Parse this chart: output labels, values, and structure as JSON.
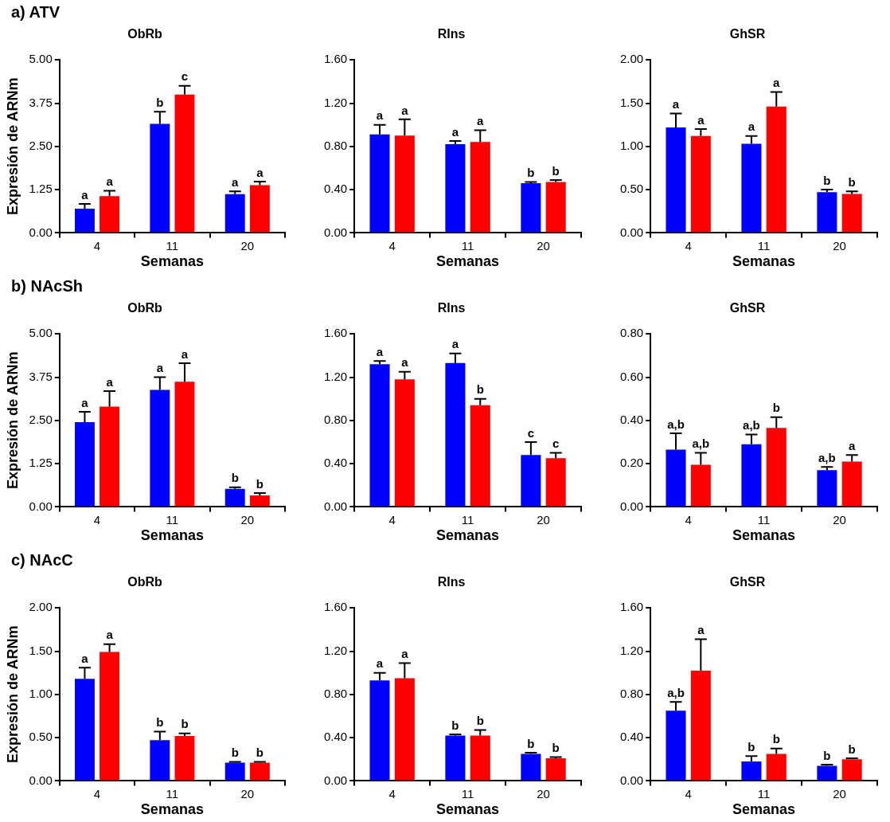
{
  "chart_data": [
    {
      "type": "bar",
      "annotations": [
        "a) ATV"
      ],
      "title": "ObRb",
      "xlabel": "Semanas",
      "ylabel": "Expresión de ARNm",
      "categories": [
        "4",
        "11",
        "20"
      ],
      "ylim": [
        0,
        5
      ],
      "yticks": [
        {
          "value": 0,
          "label": "0.00"
        },
        {
          "value": 1.25,
          "label": "1.25"
        },
        {
          "value": 2.5,
          "label": "2.50"
        },
        {
          "value": 3.75,
          "label": "3.75"
        },
        {
          "value": 5,
          "label": "5.00"
        }
      ],
      "series": [
        {
          "color": "#0000ff",
          "values": [
            0.7,
            3.15,
            1.12
          ],
          "errors": [
            [
              0.7,
              0.84
            ],
            [
              3.15,
              3.5
            ],
            [
              1.12,
              1.2
            ]
          ],
          "value_labels": [
            "a",
            "b",
            "a"
          ]
        },
        {
          "color": "#ff0000",
          "values": [
            1.06,
            4.0,
            1.38
          ],
          "errors": [
            [
              1.06,
              1.22
            ],
            [
              4.0,
              4.25
            ],
            [
              1.38,
              1.48
            ]
          ],
          "value_labels": [
            "a",
            "c",
            "a"
          ]
        }
      ]
    },
    {
      "type": "bar",
      "title": "RIns",
      "xlabel": "Semanas",
      "categories": [
        "4",
        "11",
        "20"
      ],
      "ylim": [
        0,
        1.6
      ],
      "yticks": [
        {
          "value": 0,
          "label": "0.00"
        },
        {
          "value": 0.4,
          "label": "0.40"
        },
        {
          "value": 0.8,
          "label": "0.80"
        },
        {
          "value": 1.2,
          "label": "1.20"
        },
        {
          "value": 1.6,
          "label": "1.60"
        }
      ],
      "series": [
        {
          "color": "#0000ff",
          "values": [
            0.91,
            0.82,
            0.46
          ],
          "errors": [
            [
              0.91,
              1.0
            ],
            [
              0.82,
              0.85
            ],
            [
              0.46,
              0.47
            ]
          ],
          "value_labels": [
            "a",
            "a",
            "b"
          ]
        },
        {
          "color": "#ff0000",
          "values": [
            0.9,
            0.84,
            0.47
          ],
          "errors": [
            [
              0.9,
              1.05
            ],
            [
              0.84,
              0.95
            ],
            [
              0.47,
              0.49
            ]
          ],
          "value_labels": [
            "a",
            "a",
            "b"
          ]
        }
      ]
    },
    {
      "type": "bar",
      "title": "GhSR",
      "xlabel": "Semanas",
      "categories": [
        "4",
        "11",
        "20"
      ],
      "ylim": [
        0,
        2
      ],
      "yticks": [
        {
          "value": 0,
          "label": "0.00"
        },
        {
          "value": 0.5,
          "label": "0.50"
        },
        {
          "value": 1,
          "label": "1.00"
        },
        {
          "value": 1.5,
          "label": "1.50"
        },
        {
          "value": 2,
          "label": "2.00"
        }
      ],
      "series": [
        {
          "color": "#0000ff",
          "values": [
            1.22,
            1.03,
            0.47
          ],
          "errors": [
            [
              1.22,
              1.38
            ],
            [
              1.03,
              1.12
            ],
            [
              0.47,
              0.5
            ]
          ],
          "value_labels": [
            "a",
            "a",
            "b"
          ]
        },
        {
          "color": "#ff0000",
          "values": [
            1.12,
            1.46,
            0.45
          ],
          "errors": [
            [
              1.12,
              1.2
            ],
            [
              1.46,
              1.63
            ],
            [
              0.45,
              0.48
            ]
          ],
          "value_labels": [
            "a",
            "a",
            "b"
          ]
        }
      ]
    },
    {
      "type": "bar",
      "annotations": [
        "b) NAcSh"
      ],
      "title": "ObRb",
      "xlabel": "Semanas",
      "ylabel": "Expresión de ARNm",
      "categories": [
        "4",
        "11",
        "20"
      ],
      "ylim": [
        0,
        5
      ],
      "yticks": [
        {
          "value": 0,
          "label": "0.00"
        },
        {
          "value": 1.25,
          "label": "1.25"
        },
        {
          "value": 2.5,
          "label": "2.50"
        },
        {
          "value": 3.75,
          "label": "3.75"
        },
        {
          "value": 5,
          "label": "5.00"
        }
      ],
      "series": [
        {
          "color": "#0000ff",
          "values": [
            2.45,
            3.38,
            0.52
          ],
          "errors": [
            [
              2.45,
              2.75
            ],
            [
              3.38,
              3.75
            ],
            [
              0.52,
              0.57
            ]
          ],
          "value_labels": [
            "a",
            "a",
            "b"
          ]
        },
        {
          "color": "#ff0000",
          "values": [
            2.9,
            3.62,
            0.33
          ],
          "errors": [
            [
              2.9,
              3.35
            ],
            [
              3.62,
              4.15
            ],
            [
              0.33,
              0.4
            ]
          ],
          "value_labels": [
            "a",
            "a",
            "b"
          ]
        }
      ]
    },
    {
      "type": "bar",
      "title": "RIns",
      "xlabel": "Semanas",
      "categories": [
        "4",
        "11",
        "20"
      ],
      "ylim": [
        0,
        1.6
      ],
      "yticks": [
        {
          "value": 0,
          "label": "0.00"
        },
        {
          "value": 0.4,
          "label": "0.40"
        },
        {
          "value": 0.8,
          "label": "0.80"
        },
        {
          "value": 1.2,
          "label": "1.20"
        },
        {
          "value": 1.6,
          "label": "1.60"
        }
      ],
      "series": [
        {
          "color": "#0000ff",
          "values": [
            1.32,
            1.33,
            0.48
          ],
          "errors": [
            [
              1.32,
              1.35
            ],
            [
              1.33,
              1.42
            ],
            [
              0.48,
              0.6
            ]
          ],
          "value_labels": [
            "a",
            "a",
            "c"
          ]
        },
        {
          "color": "#ff0000",
          "values": [
            1.18,
            0.94,
            0.45
          ],
          "errors": [
            [
              1.18,
              1.25
            ],
            [
              0.94,
              1.0
            ],
            [
              0.45,
              0.5
            ]
          ],
          "value_labels": [
            "a",
            "b",
            "c"
          ]
        }
      ]
    },
    {
      "type": "bar",
      "title": "GhSR",
      "xlabel": "Semanas",
      "categories": [
        "4",
        "11",
        "20"
      ],
      "ylim": [
        0,
        0.8
      ],
      "yticks": [
        {
          "value": 0,
          "label": "0.00"
        },
        {
          "value": 0.2,
          "label": "0.20"
        },
        {
          "value": 0.4,
          "label": "0.40"
        },
        {
          "value": 0.6,
          "label": "0.60"
        },
        {
          "value": 0.8,
          "label": "0.80"
        }
      ],
      "series": [
        {
          "color": "#0000ff",
          "values": [
            0.265,
            0.29,
            0.17
          ],
          "errors": [
            [
              0.265,
              0.34
            ],
            [
              0.29,
              0.335
            ],
            [
              0.17,
              0.185
            ]
          ],
          "value_labels": [
            "a,b",
            "a,b",
            "a,b"
          ]
        },
        {
          "color": "#ff0000",
          "values": [
            0.195,
            0.365,
            0.21
          ],
          "errors": [
            [
              0.195,
              0.25
            ],
            [
              0.365,
              0.415
            ],
            [
              0.21,
              0.24
            ]
          ],
          "value_labels": [
            "a,b",
            "b",
            "a"
          ]
        }
      ]
    },
    {
      "type": "bar",
      "annotations": [
        "c) NAcC"
      ],
      "title": "ObRb",
      "xlabel": "Semanas",
      "ylabel": "Expresión de ARNm",
      "categories": [
        "4",
        "11",
        "20"
      ],
      "ylim": [
        0,
        2
      ],
      "yticks": [
        {
          "value": 0,
          "label": "0.00"
        },
        {
          "value": 0.5,
          "label": "0.50"
        },
        {
          "value": 1,
          "label": "1.00"
        },
        {
          "value": 1.5,
          "label": "1.50"
        },
        {
          "value": 2,
          "label": "2.00"
        }
      ],
      "series": [
        {
          "color": "#0000ff",
          "values": [
            1.18,
            0.47,
            0.21
          ],
          "errors": [
            [
              1.18,
              1.31
            ],
            [
              0.47,
              0.57
            ],
            [
              0.21,
              0.22
            ]
          ],
          "value_labels": [
            "a",
            "b",
            "b"
          ]
        },
        {
          "color": "#ff0000",
          "values": [
            1.49,
            0.52,
            0.21
          ],
          "errors": [
            [
              1.49,
              1.58
            ],
            [
              0.52,
              0.55
            ],
            [
              0.21,
              0.22
            ]
          ],
          "value_labels": [
            "a",
            "b",
            "b"
          ]
        }
      ]
    },
    {
      "type": "bar",
      "title": "RIns",
      "xlabel": "Semanas",
      "categories": [
        "4",
        "11",
        "20"
      ],
      "ylim": [
        0,
        1.6
      ],
      "yticks": [
        {
          "value": 0,
          "label": "0.00"
        },
        {
          "value": 0.4,
          "label": "0.40"
        },
        {
          "value": 0.8,
          "label": "0.80"
        },
        {
          "value": 1.2,
          "label": "1.20"
        },
        {
          "value": 1.6,
          "label": "1.60"
        }
      ],
      "series": [
        {
          "color": "#0000ff",
          "values": [
            0.93,
            0.42,
            0.25
          ],
          "errors": [
            [
              0.93,
              1.0
            ],
            [
              0.42,
              0.43
            ],
            [
              0.25,
              0.26
            ]
          ],
          "value_labels": [
            "a",
            "b",
            "b"
          ]
        },
        {
          "color": "#ff0000",
          "values": [
            0.95,
            0.42,
            0.21
          ],
          "errors": [
            [
              0.95,
              1.09
            ],
            [
              0.42,
              0.47
            ],
            [
              0.21,
              0.22
            ]
          ],
          "value_labels": [
            "a",
            "b",
            "b"
          ]
        }
      ]
    },
    {
      "type": "bar",
      "title": "GhSR",
      "xlabel": "Semanas",
      "categories": [
        "4",
        "11",
        "20"
      ],
      "ylim": [
        0,
        1.6
      ],
      "yticks": [
        {
          "value": 0,
          "label": "0.00"
        },
        {
          "value": 0.4,
          "label": "0.40"
        },
        {
          "value": 0.8,
          "label": "0.80"
        },
        {
          "value": 1.2,
          "label": "1.20"
        },
        {
          "value": 1.6,
          "label": "1.60"
        }
      ],
      "series": [
        {
          "color": "#0000ff",
          "values": [
            0.65,
            0.18,
            0.14
          ],
          "errors": [
            [
              0.65,
              0.73
            ],
            [
              0.18,
              0.23
            ],
            [
              0.14,
              0.15
            ]
          ],
          "value_labels": [
            "a,b",
            "b",
            "b"
          ]
        },
        {
          "color": "#ff0000",
          "values": [
            1.02,
            0.25,
            0.2
          ],
          "errors": [
            [
              1.02,
              1.31
            ],
            [
              0.25,
              0.3
            ],
            [
              0.2,
              0.21
            ]
          ],
          "value_labels": [
            "a",
            "b",
            "b"
          ]
        }
      ]
    }
  ]
}
